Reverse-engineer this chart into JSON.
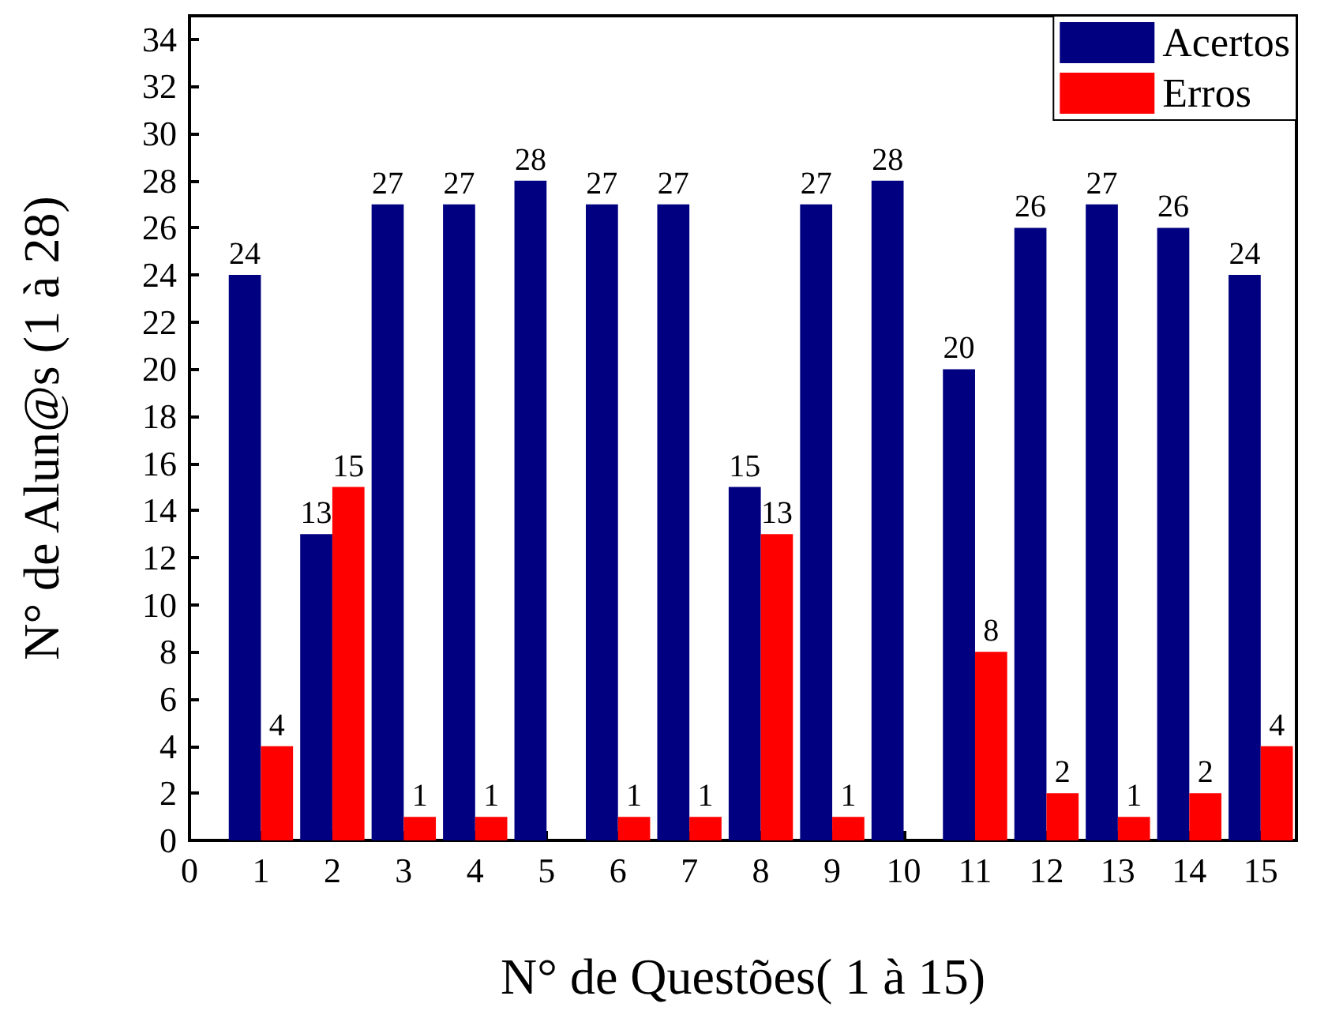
{
  "chart_data": {
    "type": "bar",
    "xlabel": "N° de Questões( 1 à 15)",
    "ylabel": "N° de Alun@s (1 à 28)",
    "x": [
      1,
      2,
      3,
      4,
      5,
      6,
      7,
      8,
      9,
      10,
      11,
      12,
      13,
      14,
      15
    ],
    "series": [
      {
        "name": "Acertos",
        "color": "#000080",
        "values": [
          24,
          13,
          27,
          27,
          28,
          27,
          27,
          15,
          27,
          28,
          20,
          26,
          27,
          26,
          24
        ],
        "value_labels": [
          "24",
          "13",
          "27",
          "27",
          "28",
          "27",
          "27",
          "15",
          "27",
          "28",
          "20",
          "26",
          "27",
          "26",
          "24"
        ]
      },
      {
        "name": "Erros",
        "color": "#ff0000",
        "values": [
          4,
          15,
          1,
          1,
          0,
          1,
          1,
          13,
          1,
          0,
          8,
          2,
          1,
          2,
          4
        ],
        "value_labels": [
          "4",
          "15",
          "1",
          "1",
          null,
          "1",
          "1",
          "13",
          "1",
          null,
          "8",
          "2",
          "1",
          "2",
          "4"
        ]
      }
    ],
    "xlim": [
      0,
      15.5
    ],
    "xticks": [
      0,
      1,
      2,
      3,
      4,
      5,
      6,
      7,
      8,
      9,
      10,
      11,
      12,
      13,
      14,
      15
    ],
    "ylim": [
      0,
      35
    ],
    "yticks": [
      0,
      2,
      4,
      6,
      8,
      10,
      12,
      14,
      16,
      18,
      20,
      22,
      24,
      26,
      28,
      30,
      32,
      34
    ],
    "grid": false,
    "legend": "top right"
  }
}
